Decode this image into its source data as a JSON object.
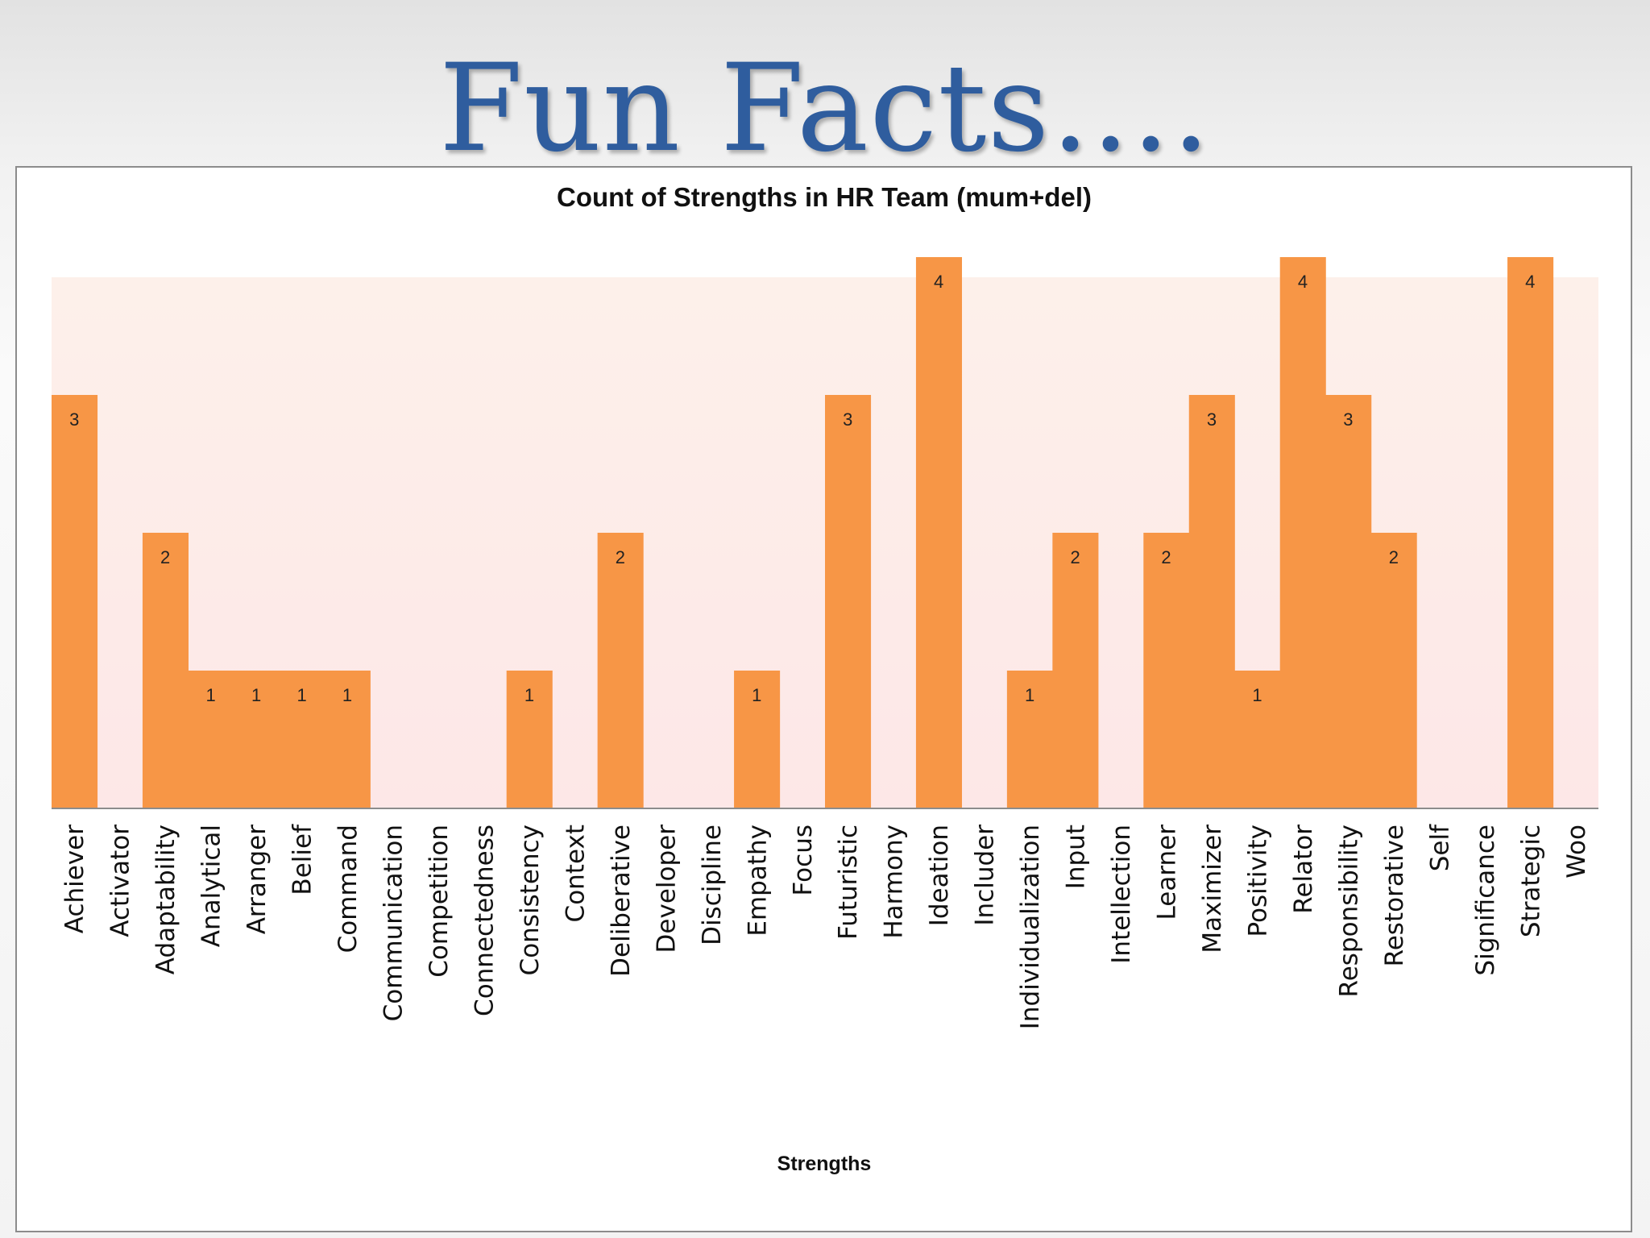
{
  "slide": {
    "title": "Fun Facts…."
  },
  "colors": {
    "title": "#2f5d9e",
    "bar": "#f79646",
    "plot_area_top": "#fdf0ea",
    "plot_area_bottom": "#fde7e7",
    "axis": "#8c8c8c"
  },
  "chart_data": {
    "type": "bar",
    "title": "Count of Strengths in HR Team (mum+del)",
    "xlabel": "Strengths",
    "ylabel": "",
    "ylim": [
      0,
      4
    ],
    "grid": false,
    "legend": "none",
    "categories": [
      "Achiever",
      "Activator",
      "Adaptability",
      "Analytical",
      "Arranger",
      "Belief",
      "Command",
      "Communication",
      "Competition",
      "Connectedness",
      "Consistency",
      "Context",
      "Deliberative",
      "Developer",
      "Discipline",
      "Empathy",
      "Focus",
      "Futuristic",
      "Harmony",
      "Ideation",
      "Includer",
      "Individualization",
      "Input",
      "Intellection",
      "Learner",
      "Maximizer",
      "Positivity",
      "Relator",
      "Responsibility",
      "Restorative",
      "Self",
      "Significance",
      "Strategic",
      "Woo"
    ],
    "values": [
      3,
      null,
      2,
      1,
      1,
      1,
      1,
      null,
      null,
      null,
      1,
      null,
      2,
      null,
      null,
      1,
      null,
      3,
      null,
      4,
      null,
      1,
      2,
      null,
      2,
      3,
      1,
      4,
      3,
      2,
      null,
      null,
      4,
      null
    ]
  }
}
